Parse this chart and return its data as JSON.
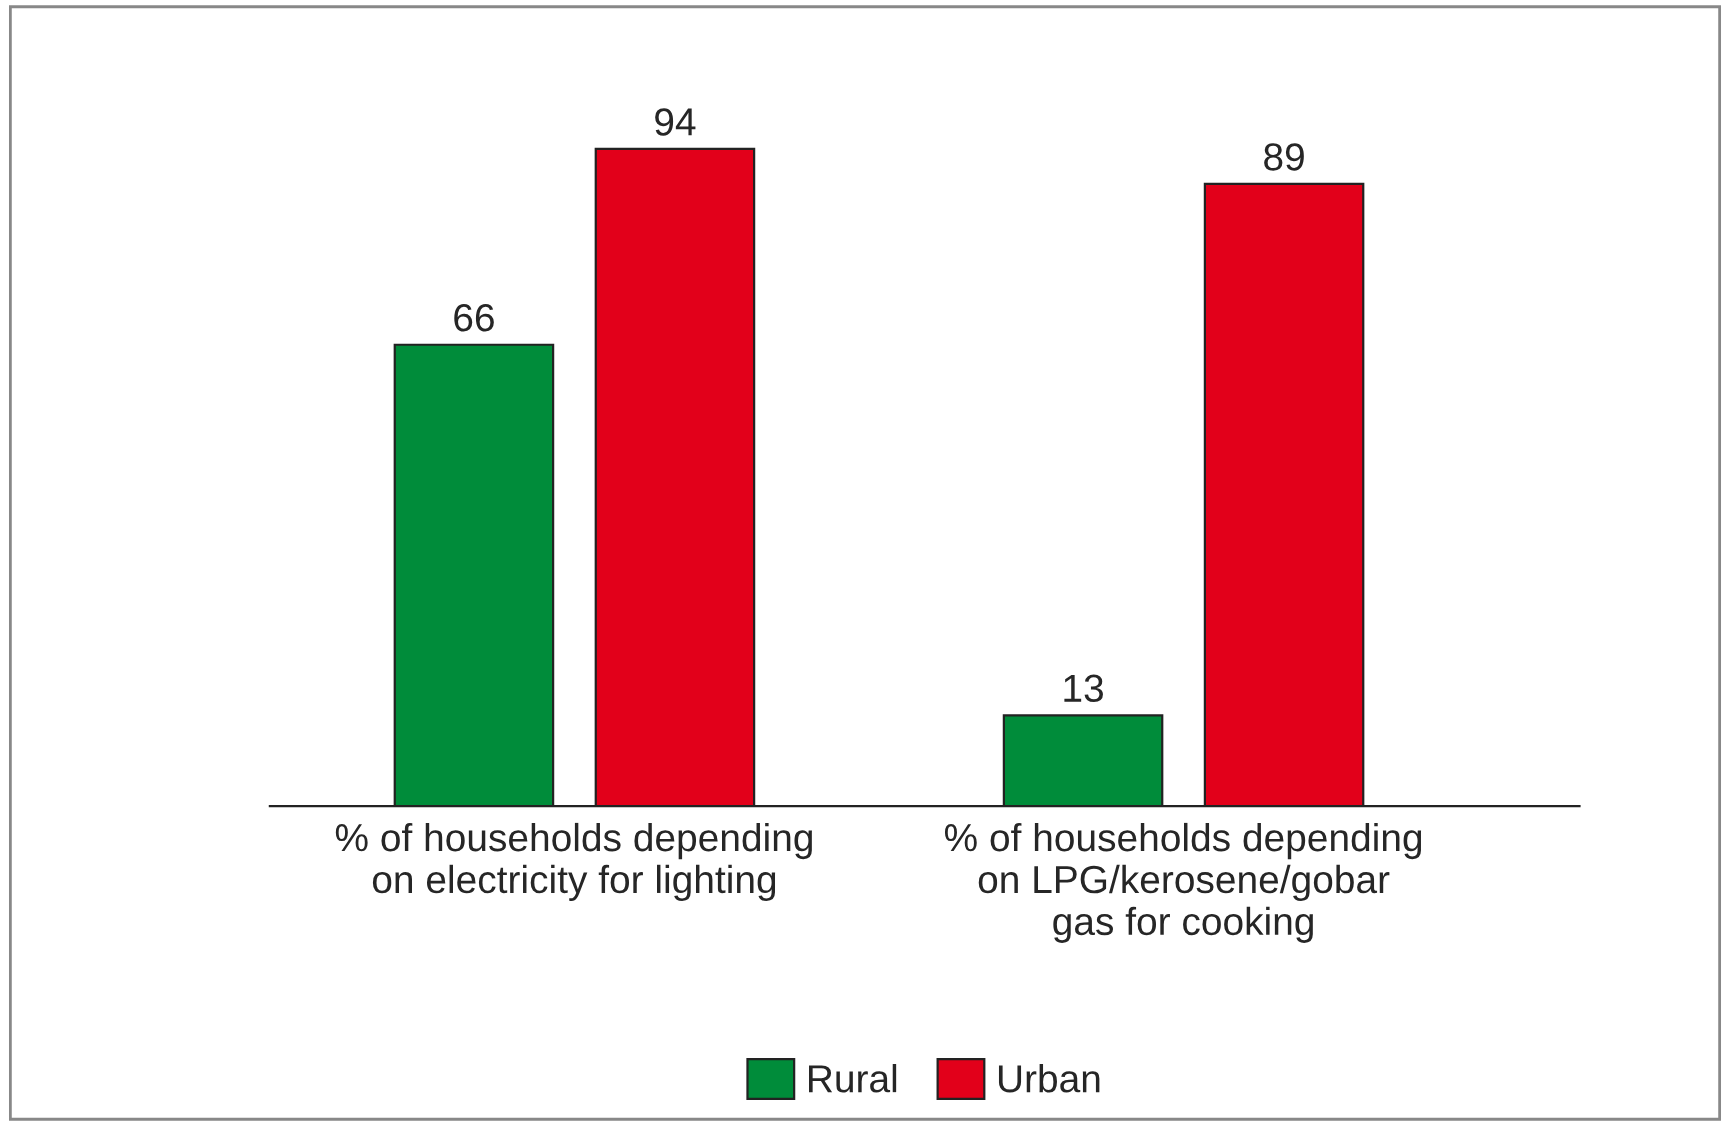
{
  "chart_data": {
    "type": "bar",
    "categories": [
      "% of households depending\non electricity for lighting",
      "% of households depending\non LPG/kerosene/gobar\ngas for cooking"
    ],
    "series": [
      {
        "name": "Rural",
        "color": "#008c3a",
        "values": [
          66,
          13
        ]
      },
      {
        "name": "Urban",
        "color": "#e2001a",
        "values": [
          94,
          89
        ]
      }
    ],
    "data_labels": true,
    "legend": "bottom",
    "grid": false
  }
}
